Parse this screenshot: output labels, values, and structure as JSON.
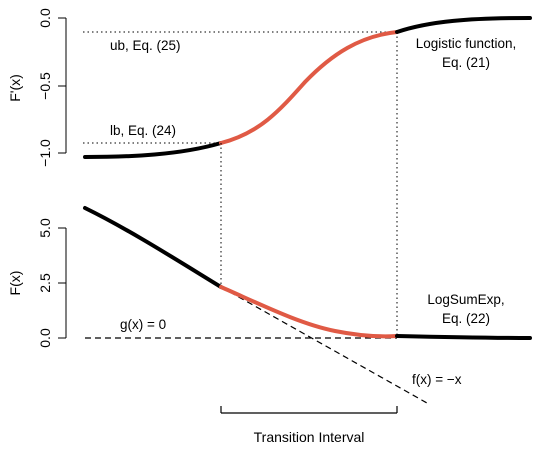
{
  "chart_data": [
    {
      "type": "line",
      "ylabel": "F'(x)",
      "ylim": [
        -1.05,
        0.05
      ],
      "y_ticks": [
        "0.0",
        "−0.5",
        "−1.0"
      ],
      "y_tick_values": [
        0.0,
        -0.5,
        -1.0
      ],
      "series": [
        {
          "x": [
            0.0,
            0.25,
            0.5,
            0.75,
            1.0,
            1.25,
            1.5,
            1.75,
            2.0,
            2.25,
            2.5,
            2.75,
            3.0,
            3.25,
            3.5,
            3.75,
            4.0,
            4.25,
            4.5,
            4.75,
            5.0
          ],
          "values": [
            -0.998,
            -0.997,
            -0.995,
            -0.993,
            -0.989,
            -0.983,
            -0.973,
            -0.957,
            -0.927,
            -0.868,
            -0.75,
            -0.6,
            -0.5,
            -0.4,
            -0.25,
            -0.132,
            -0.073,
            -0.043,
            -0.027,
            -0.017,
            -0.011
          ]
        }
      ],
      "annotations": [
        {
          "text": "ub, Eq. (25)",
          "y": -0.1
        },
        {
          "text": "lb, Eq. (24)",
          "y": -0.9
        },
        {
          "text": "Logistic function,",
          "line": 1
        },
        {
          "text": "Eq. (21)",
          "line": 2
        }
      ],
      "transition_x": [
        2.0,
        4.0
      ],
      "colors": {
        "outside": "#000000",
        "transition": "#e05a45"
      }
    },
    {
      "type": "line",
      "ylabel": "F(x)",
      "ylim": [
        -0.2,
        6.0
      ],
      "y_ticks": [
        "5.0",
        "2.5",
        "0.0"
      ],
      "y_tick_values": [
        5.0,
        2.5,
        0.0
      ],
      "series": [
        {
          "x": [
            0.0,
            0.25,
            0.5,
            0.75,
            1.0,
            1.25,
            1.5,
            1.75,
            2.0,
            2.25,
            2.5,
            2.75,
            3.0,
            3.25,
            3.5,
            3.75,
            4.0,
            4.25,
            4.5,
            4.75,
            5.0
          ],
          "values": [
            5.6,
            5.35,
            5.1,
            4.85,
            4.55,
            4.25,
            3.9,
            3.5,
            2.75,
            2.2,
            1.65,
            1.15,
            0.75,
            0.45,
            0.25,
            0.15,
            0.08,
            0.05,
            0.03,
            0.02,
            0.01
          ]
        }
      ],
      "reference_lines": [
        {
          "label": "g(x) = 0",
          "type": "horizontal",
          "value": 0.0
        },
        {
          "label": "f(x) = −x",
          "type": "linear",
          "x_range": [
            2.0,
            5.1
          ],
          "y_range": [
            2.3,
            -3.0
          ]
        }
      ],
      "annotations": [
        {
          "text": "LogSumExp,",
          "line": 1
        },
        {
          "text": "Eq. (22)",
          "line": 2
        }
      ],
      "transition_x": [
        2.0,
        4.0
      ],
      "colors": {
        "outside": "#000000",
        "transition": "#e05a45"
      }
    }
  ],
  "bracket_label": "Transition Interval"
}
